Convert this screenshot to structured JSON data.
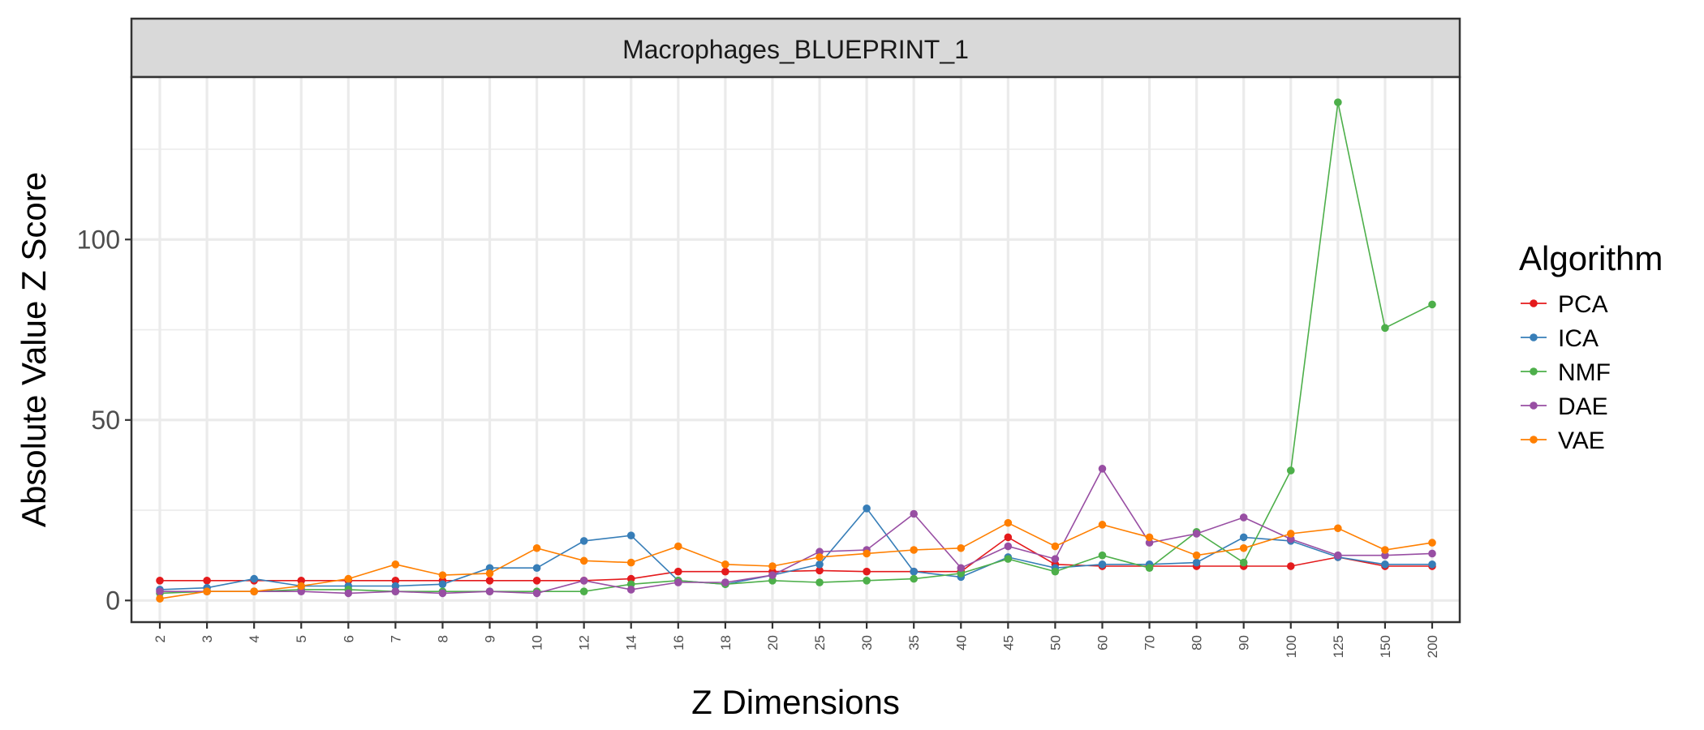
{
  "chart_data": {
    "type": "line",
    "title": "Macrophages_BLUEPRINT_1",
    "xlabel": "Z Dimensions",
    "ylabel": "Absolute Value Z Score",
    "categories": [
      "2",
      "3",
      "4",
      "5",
      "6",
      "7",
      "8",
      "9",
      "10",
      "12",
      "14",
      "16",
      "18",
      "20",
      "25",
      "30",
      "35",
      "40",
      "45",
      "50",
      "60",
      "70",
      "80",
      "90",
      "100",
      "125",
      "150",
      "200"
    ],
    "ylim": [
      -6,
      145
    ],
    "yticks": [
      0,
      50,
      100
    ],
    "grid": true,
    "legend": {
      "title": "Algorithm",
      "position": "right"
    },
    "series": [
      {
        "name": "PCA",
        "color": "#e41a1c",
        "values": [
          5.5,
          5.5,
          5.5,
          5.5,
          5.5,
          5.5,
          5.5,
          5.5,
          5.5,
          5.5,
          6.0,
          8.0,
          8.0,
          8.0,
          8.3,
          8.0,
          8.0,
          8.0,
          17.5,
          10.0,
          9.5,
          9.5,
          9.5,
          9.5,
          9.5,
          12.0,
          9.5,
          9.5
        ]
      },
      {
        "name": "ICA",
        "color": "#377eb8",
        "values": [
          3.0,
          3.5,
          6.0,
          4.0,
          4.0,
          4.0,
          4.5,
          9.0,
          9.0,
          16.5,
          18.0,
          5.5,
          4.5,
          7.0,
          10.0,
          25.5,
          8.0,
          6.5,
          12.0,
          9.0,
          10.0,
          10.0,
          10.5,
          17.5,
          16.5,
          12.0,
          10.0,
          10.0
        ]
      },
      {
        "name": "NMF",
        "color": "#4daf4a",
        "values": [
          2.0,
          2.5,
          2.5,
          3.0,
          3.0,
          2.5,
          2.5,
          2.5,
          2.5,
          2.5,
          4.5,
          5.5,
          4.5,
          5.5,
          5.0,
          5.5,
          6.0,
          7.5,
          11.5,
          8.0,
          12.5,
          9.0,
          19.0,
          10.5,
          36.0,
          138.0,
          75.5,
          82.0
        ]
      },
      {
        "name": "DAE",
        "color": "#984ea3",
        "values": [
          2.5,
          2.5,
          2.5,
          2.5,
          2.0,
          2.5,
          2.0,
          2.5,
          2.0,
          5.5,
          3.0,
          5.0,
          5.0,
          7.0,
          13.5,
          14.0,
          24.0,
          9.0,
          15.0,
          11.5,
          36.5,
          16.0,
          18.5,
          23.0,
          17.0,
          12.5,
          12.5,
          13.0
        ]
      },
      {
        "name": "VAE",
        "color": "#ff7f00",
        "values": [
          0.5,
          2.5,
          2.5,
          4.0,
          6.0,
          10.0,
          7.0,
          7.5,
          14.5,
          11.0,
          10.5,
          15.0,
          10.0,
          9.5,
          12.0,
          13.0,
          14.0,
          14.5,
          21.5,
          15.0,
          21.0,
          17.5,
          12.5,
          14.5,
          18.5,
          20.0,
          14.0,
          16.0
        ]
      }
    ]
  }
}
